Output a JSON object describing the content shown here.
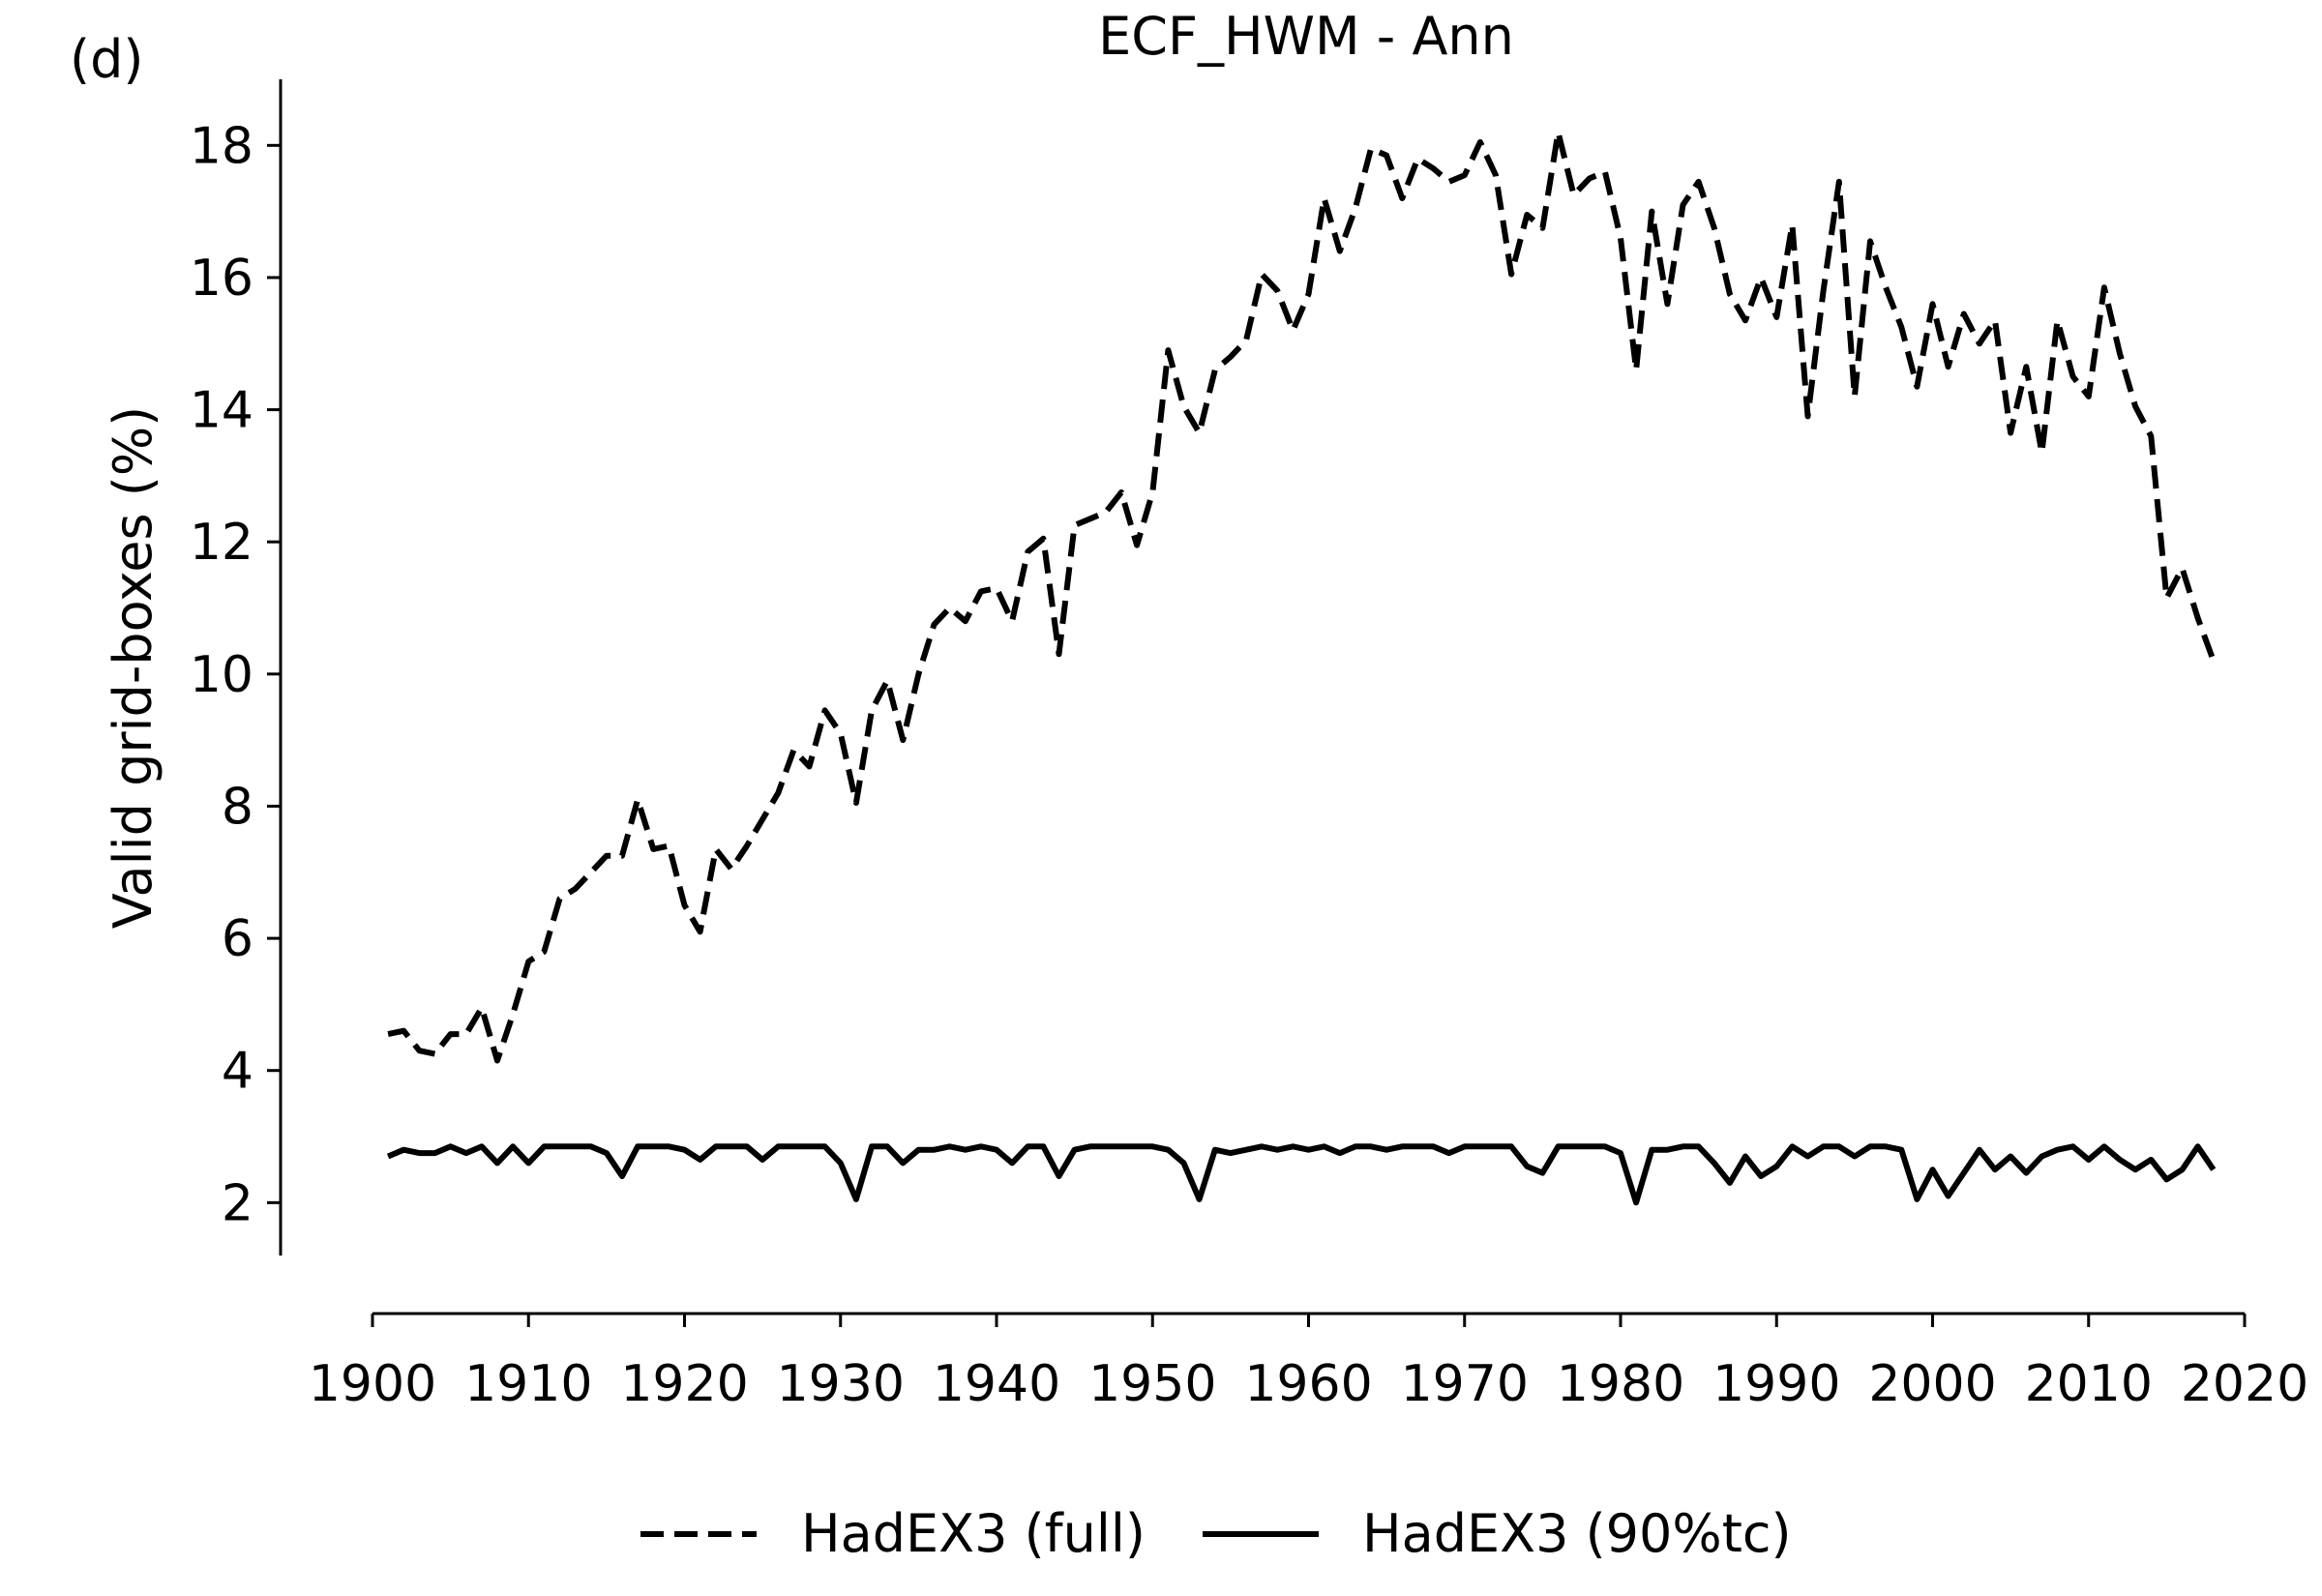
{
  "chart_data": {
    "type": "line",
    "panel_label": "(d)",
    "title": "ECF_HWM - Ann",
    "xlabel": "",
    "ylabel": "Valid grid-boxes (%)",
    "xlim": [
      1900,
      2020
    ],
    "ylim": [
      1.2,
      19
    ],
    "x_ticks": [
      1900,
      1910,
      1920,
      1930,
      1940,
      1950,
      1960,
      1970,
      1980,
      1990,
      2000,
      2010,
      2020
    ],
    "y_ticks": [
      2,
      4,
      6,
      8,
      10,
      12,
      14,
      16,
      18
    ],
    "grid": false,
    "legend_position": "bottom-center",
    "x": [
      1901,
      1902,
      1903,
      1904,
      1905,
      1906,
      1907,
      1908,
      1909,
      1910,
      1911,
      1912,
      1913,
      1914,
      1915,
      1916,
      1917,
      1918,
      1919,
      1920,
      1921,
      1922,
      1923,
      1924,
      1925,
      1926,
      1927,
      1928,
      1929,
      1930,
      1931,
      1932,
      1933,
      1934,
      1935,
      1936,
      1937,
      1938,
      1939,
      1940,
      1941,
      1942,
      1943,
      1944,
      1945,
      1946,
      1947,
      1948,
      1949,
      1950,
      1951,
      1952,
      1953,
      1954,
      1955,
      1956,
      1957,
      1958,
      1959,
      1960,
      1961,
      1962,
      1963,
      1964,
      1965,
      1966,
      1967,
      1968,
      1969,
      1970,
      1971,
      1972,
      1973,
      1974,
      1975,
      1976,
      1977,
      1978,
      1979,
      1980,
      1981,
      1982,
      1983,
      1984,
      1985,
      1986,
      1987,
      1988,
      1989,
      1990,
      1991,
      1992,
      1993,
      1994,
      1995,
      1996,
      1997,
      1998,
      1999,
      2000,
      2001,
      2002,
      2003,
      2004,
      2005,
      2006,
      2007,
      2008,
      2009,
      2010,
      2011,
      2012,
      2013,
      2014,
      2015,
      2016,
      2017,
      2018
    ],
    "series": [
      {
        "name": "HadEX3 (full)",
        "style": "dashed",
        "color": "#000000",
        "values": [
          4.55,
          4.6,
          4.3,
          4.25,
          4.55,
          4.55,
          4.95,
          4.15,
          4.85,
          5.65,
          5.8,
          6.6,
          6.75,
          7.0,
          7.25,
          7.25,
          8.1,
          7.35,
          7.4,
          6.5,
          6.1,
          7.35,
          7.05,
          7.4,
          7.8,
          8.2,
          8.85,
          8.6,
          9.45,
          9.1,
          8.05,
          9.45,
          9.9,
          9.0,
          10.0,
          10.75,
          11.0,
          10.8,
          11.25,
          11.3,
          10.8,
          11.85,
          12.05,
          10.3,
          12.25,
          12.35,
          12.45,
          12.75,
          11.95,
          12.75,
          14.9,
          14.05,
          13.65,
          14.6,
          14.8,
          15.05,
          16.05,
          15.8,
          15.2,
          15.75,
          17.2,
          16.4,
          17.05,
          17.95,
          17.85,
          17.2,
          17.8,
          17.65,
          17.45,
          17.55,
          18.05,
          17.55,
          16.05,
          16.95,
          16.75,
          18.2,
          17.25,
          17.5,
          17.6,
          16.6,
          14.6,
          17.0,
          15.6,
          17.1,
          17.45,
          16.75,
          15.75,
          15.35,
          16.0,
          15.4,
          16.8,
          13.9,
          15.8,
          17.45,
          14.2,
          16.55,
          15.85,
          15.25,
          14.35,
          15.6,
          14.65,
          15.45,
          15.0,
          15.35,
          13.65,
          14.65,
          13.35,
          15.35,
          14.5,
          14.2,
          15.85,
          14.85,
          14.05,
          13.6,
          11.15,
          11.6,
          10.85,
          10.2
        ]
      },
      {
        "name": "HadEX3 (90%tc)",
        "style": "solid",
        "color": "#000000",
        "values": [
          2.7,
          2.8,
          2.75,
          2.75,
          2.85,
          2.75,
          2.85,
          2.6,
          2.85,
          2.6,
          2.85,
          2.85,
          2.85,
          2.85,
          2.75,
          2.4,
          2.85,
          2.85,
          2.85,
          2.8,
          2.65,
          2.85,
          2.85,
          2.85,
          2.65,
          2.85,
          2.85,
          2.85,
          2.85,
          2.6,
          2.05,
          2.85,
          2.85,
          2.6,
          2.8,
          2.8,
          2.85,
          2.8,
          2.85,
          2.8,
          2.6,
          2.85,
          2.85,
          2.4,
          2.8,
          2.85,
          2.85,
          2.85,
          2.85,
          2.85,
          2.8,
          2.6,
          2.05,
          2.8,
          2.75,
          2.8,
          2.85,
          2.8,
          2.85,
          2.8,
          2.85,
          2.75,
          2.85,
          2.85,
          2.8,
          2.85,
          2.85,
          2.85,
          2.75,
          2.85,
          2.85,
          2.85,
          2.85,
          2.55,
          2.45,
          2.85,
          2.85,
          2.85,
          2.85,
          2.75,
          2.0,
          2.8,
          2.8,
          2.85,
          2.85,
          2.6,
          2.3,
          2.7,
          2.4,
          2.55,
          2.85,
          2.7,
          2.85,
          2.85,
          2.7,
          2.85,
          2.85,
          2.8,
          2.05,
          2.5,
          2.1,
          2.45,
          2.8,
          2.5,
          2.7,
          2.45,
          2.7,
          2.8,
          2.85,
          2.65,
          2.85,
          2.65,
          2.5,
          2.65,
          2.35,
          2.5,
          2.85,
          2.5
        ]
      }
    ]
  }
}
